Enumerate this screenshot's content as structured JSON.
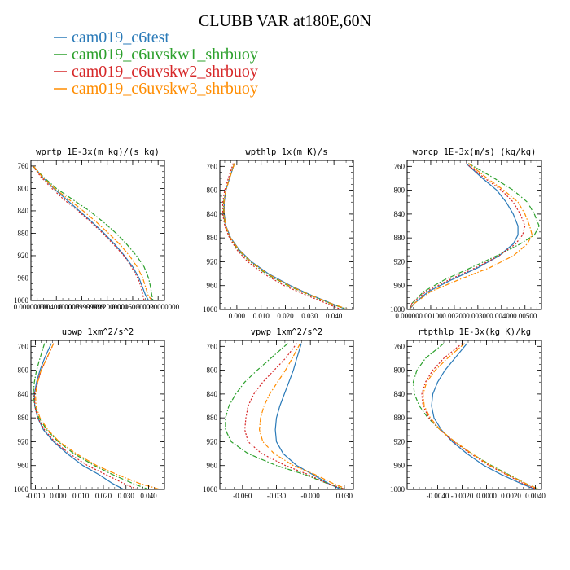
{
  "figure": {
    "title": "CLUBB VAR at180E,60N"
  },
  "legend": [
    {
      "name": "cam019_c6test",
      "color": "#2a7ab8",
      "dash": "solid"
    },
    {
      "name": "cam019_c6uvskw1_shrbuoy",
      "color": "#2ca02c",
      "dash": "dashdot"
    },
    {
      "name": "cam019_c6uvskw2_shrbuoy",
      "color": "#d62728",
      "dash": "dotted"
    },
    {
      "name": "cam019_c6uvskw3_shrbuoy",
      "color": "#ff8c00",
      "dash": "dashdot"
    }
  ],
  "chart_data": [
    {
      "type": "line",
      "title": "wprtp  1E-3x(m kg)/(s kg)",
      "y_reversed": true,
      "ylim": [
        1000,
        750
      ],
      "yticks": [
        760,
        800,
        840,
        880,
        920,
        960,
        1000
      ],
      "xlim": [
        0.0,
        0.0021
      ],
      "xticks": [
        0.0,
        0.0004,
        0.0008,
        0.0012,
        0.0016,
        0.002
      ],
      "xticklabels": [
        "0.00000000",
        "0.00040000000",
        "0.00079999999",
        "0.0012000000",
        "0.0016000000",
        "0.0020000000"
      ],
      "y": [
        760,
        780,
        800,
        820,
        840,
        860,
        880,
        900,
        920,
        940,
        960,
        975,
        990,
        1000
      ],
      "series": [
        {
          "name": "cam019_c6test",
          "values": [
            4e-05,
            0.00018,
            0.00036,
            0.00056,
            0.00076,
            0.00096,
            0.00115,
            0.00132,
            0.00147,
            0.0016,
            0.0017,
            0.00175,
            0.0018,
            0.00185
          ]
        },
        {
          "name": "cam019_c6uvskw1_shrbuoy",
          "values": [
            3e-05,
            0.0002,
            0.0004,
            0.00066,
            0.00092,
            0.00114,
            0.00134,
            0.00151,
            0.00166,
            0.00178,
            0.00185,
            0.00188,
            0.0019,
            0.00192
          ]
        },
        {
          "name": "cam019_c6uvskw2_shrbuoy",
          "values": [
            3e-05,
            0.00016,
            0.00033,
            0.00052,
            0.00074,
            0.00094,
            0.00113,
            0.0013,
            0.00146,
            0.00158,
            0.00168,
            0.00173,
            0.00176,
            0.00178
          ]
        },
        {
          "name": "cam019_c6uvskw3_shrbuoy",
          "values": [
            4e-05,
            0.00018,
            0.00037,
            0.0006,
            0.00082,
            0.00103,
            0.00122,
            0.0014,
            0.00155,
            0.00167,
            0.00176,
            0.0018,
            0.00184,
            0.0019
          ]
        }
      ]
    },
    {
      "type": "line",
      "title": "wpthlp  1x(m K)/s",
      "y_reversed": true,
      "ylim": [
        1000,
        750
      ],
      "yticks": [
        760,
        800,
        840,
        880,
        920,
        960,
        1000
      ],
      "xlim": [
        -0.007,
        0.048
      ],
      "xticks": [
        0.0,
        0.01,
        0.02,
        0.03,
        0.04
      ],
      "xticklabels": [
        "0.000",
        "0.010",
        "0.020",
        "0.030",
        "0.040"
      ],
      "y": [
        755,
        780,
        800,
        820,
        840,
        860,
        880,
        900,
        920,
        940,
        960,
        975,
        990,
        1000
      ],
      "series": [
        {
          "name": "cam019_c6test",
          "values": [
            -0.001,
            -0.003,
            -0.0045,
            -0.0052,
            -0.0052,
            -0.0045,
            -0.0025,
            0.001,
            0.006,
            0.013,
            0.022,
            0.03,
            0.039,
            0.045
          ]
        },
        {
          "name": "cam019_c6uvskw1_shrbuoy",
          "values": [
            -0.001,
            -0.003,
            -0.0045,
            -0.0055,
            -0.0055,
            -0.0048,
            -0.0028,
            0.0005,
            0.0055,
            0.012,
            0.021,
            0.0295,
            0.0385,
            0.0455
          ]
        },
        {
          "name": "cam019_c6uvskw2_shrbuoy",
          "values": [
            -0.0015,
            -0.0035,
            -0.005,
            -0.0058,
            -0.0058,
            -0.005,
            -0.003,
            0.0,
            0.0045,
            0.011,
            0.0195,
            0.028,
            0.037,
            0.043
          ]
        },
        {
          "name": "cam019_c6uvskw3_shrbuoy",
          "values": [
            -0.001,
            -0.003,
            -0.0045,
            -0.0053,
            -0.0053,
            -0.0046,
            -0.0026,
            0.0008,
            0.0058,
            0.0125,
            0.0215,
            0.0298,
            0.0388,
            0.046
          ]
        }
      ]
    },
    {
      "type": "line",
      "title": "wprcp  1E-3x(m/s) (kg/kg)",
      "y_reversed": true,
      "ylim": [
        1000,
        750
      ],
      "yticks": [
        760,
        800,
        840,
        880,
        920,
        960,
        1000
      ],
      "xlim": [
        0.0,
        0.0057
      ],
      "xticks": [
        0.0,
        0.001,
        0.002,
        0.003,
        0.004,
        0.005
      ],
      "xticklabels": [
        "0.00000",
        "0.00100",
        "0.00200",
        "0.00300",
        "0.00400",
        "0.00500"
      ],
      "y": [
        755,
        780,
        800,
        820,
        840,
        860,
        875,
        890,
        910,
        930,
        950,
        970,
        990,
        1000
      ],
      "series": [
        {
          "name": "cam019_c6test",
          "values": [
            0.0025,
            0.0032,
            0.0038,
            0.0042,
            0.0045,
            0.0047,
            0.0047,
            0.0045,
            0.0039,
            0.003,
            0.0019,
            0.0009,
            0.0003,
            0.0001
          ]
        },
        {
          "name": "cam019_c6uvskw1_shrbuoy",
          "values": [
            0.0026,
            0.0037,
            0.0045,
            0.0051,
            0.0054,
            0.0056,
            0.0054,
            0.0048,
            0.0038,
            0.0027,
            0.0016,
            0.0007,
            0.0002,
            0.0001
          ]
        },
        {
          "name": "cam019_c6uvskw2_shrbuoy",
          "values": [
            0.0025,
            0.0033,
            0.004,
            0.0045,
            0.0048,
            0.005,
            0.0049,
            0.0046,
            0.0039,
            0.0029,
            0.0018,
            0.0008,
            0.0002,
            0.0001
          ]
        },
        {
          "name": "cam019_c6uvskw3_shrbuoy",
          "values": [
            0.0026,
            0.0034,
            0.0041,
            0.0047,
            0.005,
            0.0052,
            0.0053,
            0.0051,
            0.0045,
            0.0035,
            0.0022,
            0.001,
            0.0003,
            0.0001
          ]
        }
      ]
    },
    {
      "type": "line",
      "title": "upwp  1xm^2/s^2",
      "y_reversed": true,
      "ylim": [
        1000,
        750
      ],
      "yticks": [
        760,
        800,
        840,
        880,
        920,
        960,
        1000
      ],
      "xlim": [
        -0.012,
        0.047
      ],
      "xticks": [
        -0.01,
        0.0,
        0.01,
        0.02,
        0.03,
        0.04
      ],
      "xticklabels": [
        "-0.010",
        "0.000",
        "0.010",
        "0.020",
        "0.030",
        "0.040"
      ],
      "y": [
        755,
        780,
        800,
        820,
        840,
        860,
        880,
        900,
        920,
        940,
        960,
        975,
        990,
        1000
      ],
      "series": [
        {
          "name": "cam019_c6test",
          "values": [
            -0.003,
            -0.006,
            -0.008,
            -0.0095,
            -0.0105,
            -0.0103,
            -0.009,
            -0.0065,
            -0.002,
            0.004,
            0.011,
            0.018,
            0.024,
            0.029
          ]
        },
        {
          "name": "cam019_c6uvskw1_shrbuoy",
          "values": [
            -0.006,
            -0.008,
            -0.0095,
            -0.0105,
            -0.011,
            -0.0103,
            -0.0085,
            -0.005,
            0.0,
            0.007,
            0.016,
            0.024,
            0.033,
            0.04
          ]
        },
        {
          "name": "cam019_c6uvskw2_shrbuoy",
          "values": [
            -0.002,
            -0.005,
            -0.0075,
            -0.009,
            -0.0105,
            -0.0103,
            -0.009,
            -0.006,
            -0.0015,
            0.005,
            0.013,
            0.021,
            0.029,
            0.035
          ]
        },
        {
          "name": "cam019_c6uvskw3_shrbuoy",
          "values": [
            -0.002,
            -0.005,
            -0.0075,
            -0.009,
            -0.01,
            -0.0098,
            -0.008,
            -0.0045,
            0.0005,
            0.008,
            0.017,
            0.026,
            0.036,
            0.045
          ]
        }
      ]
    },
    {
      "type": "line",
      "title": "vpwp  1xm^2/s^2",
      "y_reversed": true,
      "ylim": [
        1000,
        750
      ],
      "yticks": [
        760,
        800,
        840,
        880,
        920,
        960,
        1000
      ],
      "xlim": [
        -0.08,
        0.038
      ],
      "xticks": [
        -0.06,
        -0.03,
        0.0,
        0.03
      ],
      "xticklabels": [
        "-0.060",
        "-0.030",
        "-0.000",
        "0.030"
      ],
      "y": [
        755,
        780,
        800,
        820,
        840,
        860,
        880,
        900,
        920,
        940,
        960,
        975,
        990,
        1000
      ],
      "series": [
        {
          "name": "cam019_c6test",
          "values": [
            -0.008,
            -0.012,
            -0.015,
            -0.019,
            -0.023,
            -0.027,
            -0.03,
            -0.031,
            -0.03,
            -0.024,
            -0.012,
            0.002,
            0.016,
            0.027
          ]
        },
        {
          "name": "cam019_c6uvskw1_shrbuoy",
          "values": [
            -0.02,
            -0.035,
            -0.047,
            -0.058,
            -0.066,
            -0.072,
            -0.075,
            -0.075,
            -0.07,
            -0.055,
            -0.03,
            -0.005,
            0.015,
            0.031
          ]
        },
        {
          "name": "cam019_c6uvskw2_shrbuoy",
          "values": [
            -0.012,
            -0.022,
            -0.032,
            -0.042,
            -0.05,
            -0.055,
            -0.057,
            -0.058,
            -0.055,
            -0.043,
            -0.022,
            -0.002,
            0.015,
            0.031
          ]
        },
        {
          "name": "cam019_c6uvskw3_shrbuoy",
          "values": [
            -0.009,
            -0.016,
            -0.022,
            -0.029,
            -0.036,
            -0.041,
            -0.044,
            -0.045,
            -0.042,
            -0.032,
            -0.015,
            0.004,
            0.02,
            0.033
          ]
        }
      ]
    },
    {
      "type": "line",
      "title": "rtpthlp  1E-3x(kg K)/kg",
      "y_reversed": true,
      "ylim": [
        1000,
        750
      ],
      "yticks": [
        760,
        800,
        840,
        880,
        920,
        960,
        1000
      ],
      "xlim": [
        -0.0065,
        0.0045
      ],
      "xticks": [
        -0.004,
        -0.002,
        0.0,
        0.002,
        0.004
      ],
      "xticklabels": [
        "-0.0040",
        "-0.0020",
        "0.0000",
        "0.0020",
        "0.0040"
      ],
      "y": [
        755,
        780,
        800,
        820,
        840,
        860,
        880,
        900,
        920,
        940,
        960,
        975,
        990,
        1000
      ],
      "series": [
        {
          "name": "cam019_c6test",
          "values": [
            -0.0016,
            -0.0026,
            -0.0034,
            -0.004,
            -0.0044,
            -0.0045,
            -0.0043,
            -0.0037,
            -0.0028,
            -0.0016,
            -0.0002,
            0.0012,
            0.0028,
            0.004
          ]
        },
        {
          "name": "cam019_c6uvskw1_shrbuoy",
          "values": [
            -0.0035,
            -0.005,
            -0.0057,
            -0.006,
            -0.0059,
            -0.0055,
            -0.0048,
            -0.0038,
            -0.0026,
            -0.0012,
            0.0004,
            0.0018,
            0.0032,
            0.0043
          ]
        },
        {
          "name": "cam019_c6uvskw2_shrbuoy",
          "values": [
            -0.002,
            -0.0035,
            -0.0044,
            -0.005,
            -0.0053,
            -0.0052,
            -0.0047,
            -0.0038,
            -0.0027,
            -0.0013,
            0.0002,
            0.0016,
            0.003,
            0.0041
          ]
        },
        {
          "name": "cam019_c6uvskw3_shrbuoy",
          "values": [
            -0.0018,
            -0.0032,
            -0.0042,
            -0.0049,
            -0.0052,
            -0.0051,
            -0.0046,
            -0.0038,
            -0.0026,
            -0.0012,
            0.0003,
            0.0017,
            0.0032,
            0.0043
          ]
        }
      ]
    }
  ]
}
